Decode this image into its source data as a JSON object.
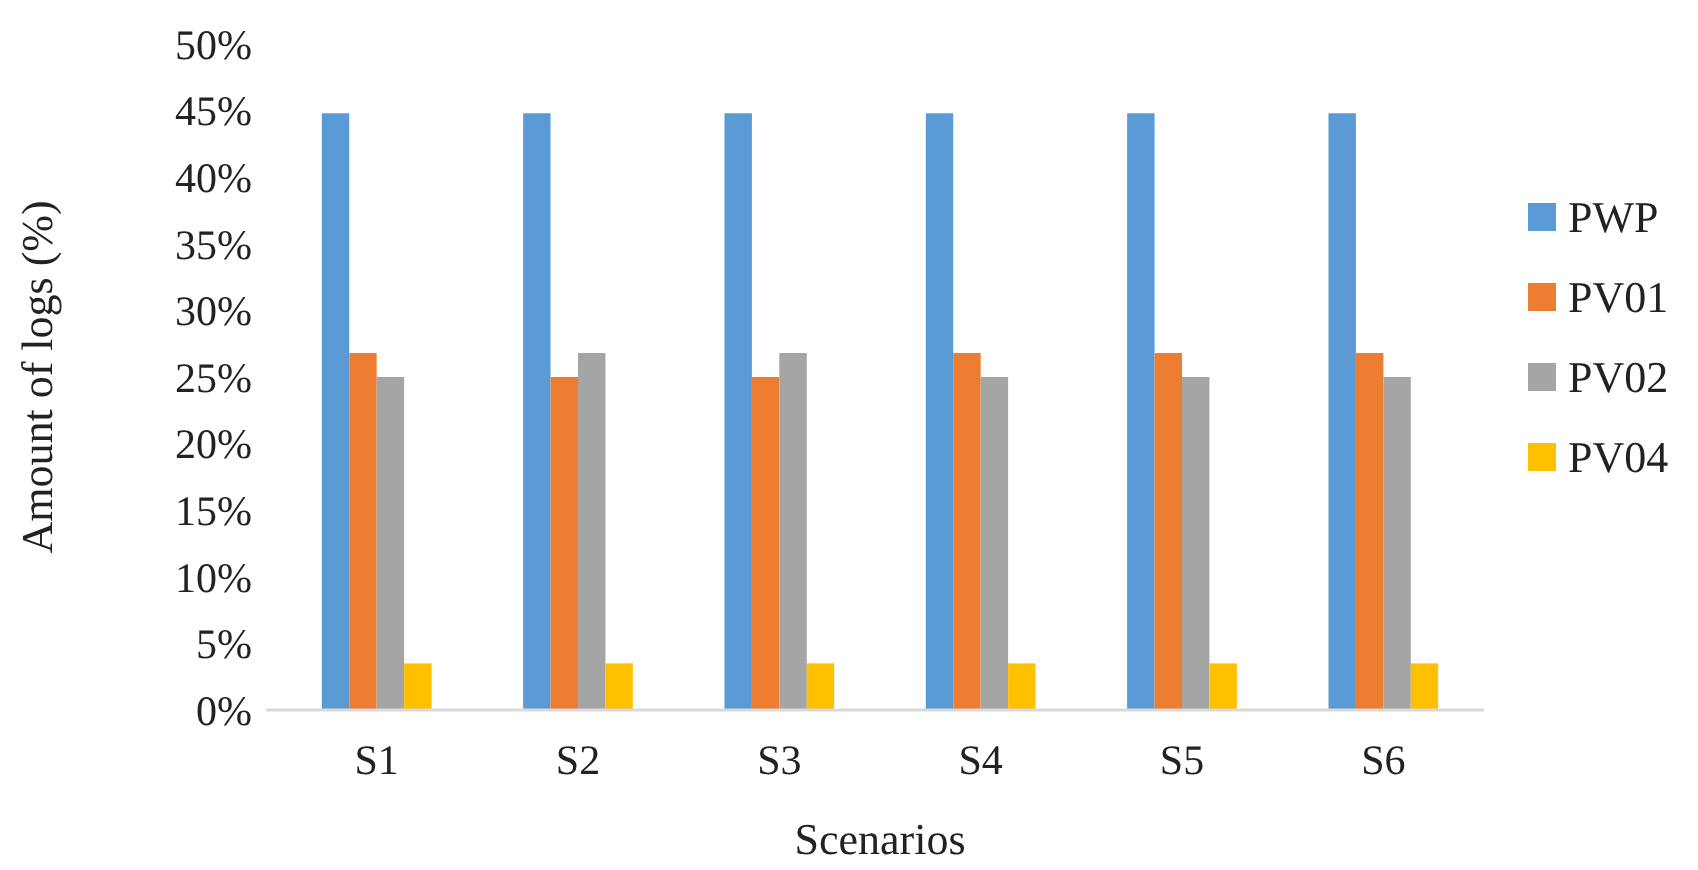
{
  "chart_data": {
    "type": "bar",
    "xlabel": "Scenarios",
    "ylabel": "Amount of logs (%)",
    "categories": [
      "S1",
      "S2",
      "S3",
      "S4",
      "S5",
      "S6"
    ],
    "series": [
      {
        "name": "PWP",
        "color": "#5b9bd5",
        "values": [
          44.8,
          44.8,
          44.8,
          44.8,
          44.8,
          44.8
        ]
      },
      {
        "name": "PV01",
        "color": "#ed7d31",
        "values": [
          26.8,
          25,
          25,
          26.8,
          26.8,
          26.8
        ]
      },
      {
        "name": "PV02",
        "color": "#a5a5a5",
        "values": [
          25,
          26.8,
          26.8,
          25,
          25,
          25
        ]
      },
      {
        "name": "PV04",
        "color": "#ffc000",
        "values": [
          3.5,
          3.5,
          3.5,
          3.5,
          3.5,
          3.5
        ]
      }
    ],
    "ylim": [
      0,
      50
    ],
    "yticks": [
      {
        "value": 0,
        "label": "0%"
      },
      {
        "value": 5,
        "label": "5%"
      },
      {
        "value": 10,
        "label": "10%"
      },
      {
        "value": 15,
        "label": "15%"
      },
      {
        "value": 20,
        "label": "20%"
      },
      {
        "value": 25,
        "label": "25%"
      },
      {
        "value": 30,
        "label": "30%"
      },
      {
        "value": 35,
        "label": "35%"
      },
      {
        "value": 40,
        "label": "40%"
      },
      {
        "value": 45,
        "label": "45%"
      },
      {
        "value": 50,
        "label": "50%"
      }
    ],
    "grid": false,
    "legend": "right"
  }
}
